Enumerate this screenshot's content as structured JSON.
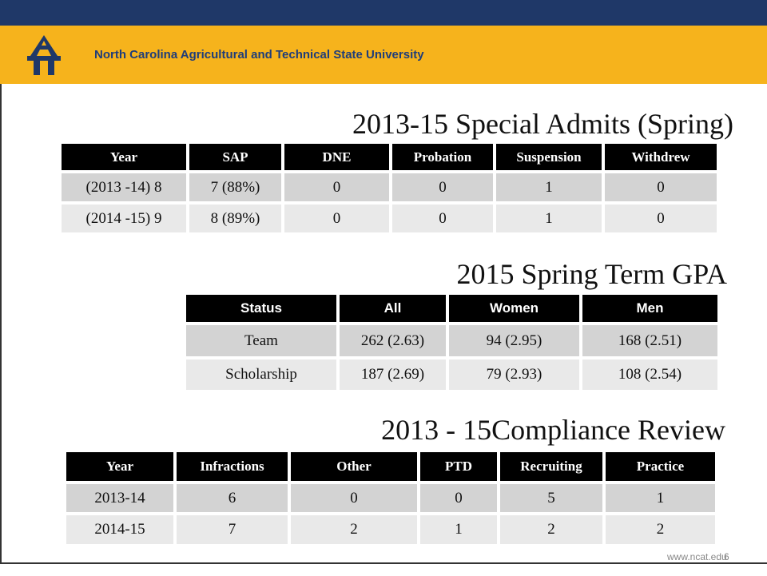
{
  "header": {
    "title": "North Carolina Agricultural and Technical State University"
  },
  "tables": [
    {
      "title": "2013-15 Special Admits (Spring)",
      "columns": [
        "Year",
        "SAP",
        "DNE",
        "Probation",
        "Suspension",
        "Withdrew"
      ],
      "rows": [
        [
          "(2013 -14) 8",
          "7 (88%)",
          "0",
          "0",
          "1",
          "0"
        ],
        [
          "(2014 -15) 9",
          "8 (89%)",
          "0",
          "0",
          "1",
          "0"
        ]
      ]
    },
    {
      "title": "2015 Spring Term GPA",
      "columns": [
        "Status",
        "All",
        "Women",
        "Men"
      ],
      "rows": [
        [
          "Team",
          "262 (2.63)",
          "94 (2.95)",
          "168 (2.51)"
        ],
        [
          "Scholarship",
          "187 (2.69)",
          "79 (2.93)",
          "108 (2.54)"
        ]
      ]
    },
    {
      "title": "2013 - 15Compliance Review",
      "columns": [
        "Year",
        "Infractions",
        "Other",
        "PTD",
        "Recruiting",
        "Practice"
      ],
      "rows": [
        [
          "2013-14",
          "6",
          "0",
          "0",
          "5",
          "1"
        ],
        [
          "2014-15",
          "7",
          "2",
          "1",
          "2",
          "2"
        ]
      ]
    }
  ],
  "footer": {
    "url": "www.ncat.edu",
    "page": "6"
  }
}
